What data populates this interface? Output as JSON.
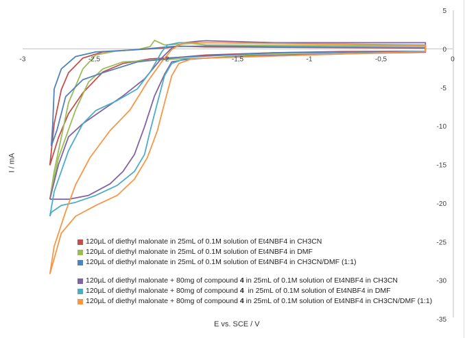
{
  "chart_data": {
    "type": "line",
    "title": "",
    "xlabel": "E vs. SCE / V",
    "ylabel": "I / mA",
    "xlim": [
      -3,
      0
    ],
    "ylim": [
      -35,
      5
    ],
    "x_ticks": [
      -3,
      -2.5,
      -2,
      -1.5,
      -1,
      -0.5,
      0
    ],
    "x_tick_labels": [
      "-3",
      "-2,5",
      "-2",
      "-1,5",
      "-1",
      "-0,5",
      "0"
    ],
    "y_ticks": [
      5,
      0,
      -5,
      -10,
      -15,
      -20,
      -25,
      -30,
      -35
    ],
    "y_tick_labels": [
      "5",
      "0",
      "-5",
      "-10",
      "-15",
      "-20",
      "-25",
      "-30",
      "-35"
    ],
    "grid": false,
    "legend_position": "bottom-left",
    "series": [
      {
        "name": "120µL of diethyl malonate in 25mL of 0.1M solution of Et4NBF4 in CH3CN",
        "label_pre": "120µL of diethyl malonate in 25mL of 0.1M solution of Et4NBF4 in CH3CN",
        "label_bold": "",
        "label_post": "",
        "color": "#c0504d",
        "branch_a": [
          [
            -2.81,
            -15.1
          ],
          [
            -2.78,
            -9.7
          ],
          [
            -2.73,
            -5.3
          ],
          [
            -2.68,
            -3.1
          ],
          [
            -2.58,
            -1.2
          ],
          [
            -2.44,
            -0.4
          ],
          [
            -2.2,
            -0.1
          ],
          [
            -2.01,
            0.1
          ],
          [
            -1.91,
            0.35
          ],
          [
            -1.72,
            0.25
          ],
          [
            -1.24,
            0.2
          ],
          [
            -0.19,
            0.1
          ]
        ],
        "branch_b": [
          [
            -2.81,
            -15.1
          ],
          [
            -2.75,
            -11.5
          ],
          [
            -2.68,
            -8.4
          ],
          [
            -2.58,
            -5.7
          ],
          [
            -2.44,
            -3.0
          ],
          [
            -2.3,
            -1.9
          ],
          [
            -2.11,
            -1.3
          ],
          [
            -1.91,
            -1.1
          ],
          [
            -1.72,
            -0.8
          ],
          [
            -1.24,
            -0.5
          ],
          [
            -0.77,
            -0.35
          ],
          [
            -0.19,
            -0.3
          ]
        ]
      },
      {
        "name": "120µL of diethyl malonate in 25mL of 0.1M solution of Et4NBF4 in DMF",
        "label_pre": "120µL of diethyl malonate in 25mL of 0.1M solution of Et4NBF4 in DMF",
        "label_bold": "",
        "label_post": "",
        "color": "#9bbb59",
        "branch_a": [
          [
            -2.81,
            -19.5
          ],
          [
            -2.78,
            -15.9
          ],
          [
            -2.68,
            -7.0
          ],
          [
            -2.58,
            -2.6
          ],
          [
            -2.49,
            -0.8
          ],
          [
            -2.35,
            -0.3
          ],
          [
            -2.2,
            -0.1
          ],
          [
            -2.11,
            0.3
          ],
          [
            -2.08,
            1.1
          ],
          [
            -2.01,
            0.5
          ],
          [
            -1.91,
            0.6
          ],
          [
            -1.82,
            0.7
          ],
          [
            -1.72,
            0.5
          ],
          [
            -0.19,
            0.35
          ]
        ],
        "branch_b": [
          [
            -2.81,
            -19.5
          ],
          [
            -2.75,
            -14.1
          ],
          [
            -2.63,
            -7.9
          ],
          [
            -2.54,
            -4.3
          ],
          [
            -2.44,
            -2.6
          ],
          [
            -2.3,
            -1.7
          ],
          [
            -2.11,
            -1.5
          ],
          [
            -1.91,
            -1.3
          ],
          [
            -1.72,
            -1.2
          ],
          [
            -1.24,
            -0.6
          ],
          [
            -0.19,
            -0.3
          ]
        ]
      },
      {
        "name": "120µL of diethyl malonate in 25mL of 0.1M solution of Et4NBF4 in CH3CN/DMF (1:1)",
        "label_pre": "120µL of diethyl malonate in 25mL of 0.1M solution of Et4NBF4 in CH3CN/DMF (1:1)",
        "label_bold": "",
        "label_post": "",
        "color": "#4f81bd",
        "branch_a": [
          [
            -2.8,
            -12.6
          ],
          [
            -2.79,
            -9.7
          ],
          [
            -2.78,
            -5.2
          ],
          [
            -2.73,
            -2.6
          ],
          [
            -2.63,
            -1.0
          ],
          [
            -2.49,
            -0.4
          ],
          [
            -2.2,
            -0.1
          ],
          [
            -1.96,
            0.3
          ],
          [
            -1.72,
            0.35
          ],
          [
            -0.19,
            0.15
          ]
        ],
        "branch_b": [
          [
            -2.8,
            -12.6
          ],
          [
            -2.76,
            -10.5
          ],
          [
            -2.7,
            -6.2
          ],
          [
            -2.58,
            -4.0
          ],
          [
            -2.44,
            -3.1
          ],
          [
            -2.2,
            -1.7
          ],
          [
            -1.91,
            -1.1
          ],
          [
            -1.24,
            -0.5
          ],
          [
            -0.19,
            -0.3
          ]
        ]
      },
      {
        "name": "120µL of diethyl malonate + 80mg of compound 4 in 25mL of 0.1M solution of Et4NBF4 in CH3CN",
        "label_pre": "120µL of diethyl malonate + 80mg of compound ",
        "label_bold": "4",
        "label_post": " in 25mL of 0.1M solution of Et4NBF4 in CH3CN",
        "color": "#8064a2",
        "branch_a": [
          [
            -2.81,
            -19.5
          ],
          [
            -2.68,
            -19.5
          ],
          [
            -2.54,
            -19.0
          ],
          [
            -2.39,
            -17.5
          ],
          [
            -2.3,
            -15.9
          ],
          [
            -2.22,
            -13.7
          ],
          [
            -2.15,
            -10.1
          ],
          [
            -2.08,
            -6.1
          ],
          [
            -2.01,
            -3.3
          ],
          [
            -1.96,
            -1.7
          ],
          [
            -1.87,
            -1.4
          ],
          [
            -1.72,
            -1.2
          ],
          [
            -1.24,
            -0.8
          ],
          [
            -0.19,
            -0.45
          ]
        ],
        "branch_b": [
          [
            -2.81,
            -19.5
          ],
          [
            -2.75,
            -15.0
          ],
          [
            -2.68,
            -11.4
          ],
          [
            -2.58,
            -9.7
          ],
          [
            -2.44,
            -7.9
          ],
          [
            -2.3,
            -6.1
          ],
          [
            -2.15,
            -3.9
          ],
          [
            -2.03,
            -1.2
          ],
          [
            -1.96,
            0.1
          ],
          [
            -1.87,
            0.8
          ],
          [
            -1.77,
            1.0
          ],
          [
            -1.72,
            1.05
          ],
          [
            -1.24,
            0.8
          ],
          [
            -0.19,
            0.8
          ]
        ]
      },
      {
        "name": "120µL of diethyl malonate + 80mg of compound 4  in 25mL of 0.1M solution of Et4NBF4 in DMF",
        "label_pre": "120µL of diethyl malonate + 80mg of compound ",
        "label_bold": "4",
        "label_post": "  in 25mL of 0.1M solution of Et4NBF4 in DMF",
        "color": "#4bacc6",
        "branch_a": [
          [
            -2.81,
            -21.7
          ],
          [
            -2.8,
            -21.2
          ],
          [
            -2.73,
            -20.3
          ],
          [
            -2.63,
            -19.9
          ],
          [
            -2.49,
            -19.0
          ],
          [
            -2.34,
            -17.7
          ],
          [
            -2.22,
            -15.9
          ],
          [
            -2.15,
            -13.7
          ],
          [
            -2.11,
            -10.6
          ],
          [
            -2.06,
            -7.0
          ],
          [
            -2.01,
            -3.5
          ],
          [
            -1.96,
            -1.9
          ],
          [
            -1.87,
            -1.3
          ],
          [
            -1.72,
            -1.2
          ],
          [
            -0.19,
            -0.3
          ]
        ],
        "branch_b": [
          [
            -2.81,
            -21.7
          ],
          [
            -2.78,
            -18.5
          ],
          [
            -2.68,
            -13.2
          ],
          [
            -2.58,
            -9.7
          ],
          [
            -2.49,
            -8.0
          ],
          [
            -2.35,
            -6.8
          ],
          [
            -2.2,
            -5.2
          ],
          [
            -2.11,
            -3.0
          ],
          [
            -2.03,
            -0.4
          ],
          [
            -1.99,
            0.5
          ],
          [
            -1.91,
            0.8
          ],
          [
            -1.72,
            0.8
          ],
          [
            -0.19,
            0.5
          ]
        ]
      },
      {
        "name": "120µL of diethyl malonate + 80mg of compound 4 in 25mL of 0.1M solution of Et4NBF4 in CH3CN/DMF (1:1)",
        "label_pre": "120µL of diethyl malonate + 80mg of compound ",
        "label_bold": "4",
        "label_post": " in 25mL of 0.1M solution of Et4NBF4 in CH3CN/DMF (1:1)",
        "color": "#f79646",
        "branch_a": [
          [
            -2.81,
            -29.2
          ],
          [
            -2.73,
            -23.9
          ],
          [
            -2.63,
            -21.7
          ],
          [
            -2.49,
            -20.3
          ],
          [
            -2.34,
            -19.0
          ],
          [
            -2.22,
            -16.9
          ],
          [
            -2.13,
            -14.1
          ],
          [
            -2.06,
            -10.6
          ],
          [
            -2.01,
            -7.0
          ],
          [
            -1.96,
            -3.5
          ],
          [
            -1.91,
            -1.9
          ],
          [
            -1.82,
            -1.3
          ],
          [
            -1.72,
            -1.2
          ],
          [
            -0.19,
            -0.35
          ]
        ],
        "branch_b": [
          [
            -2.81,
            -29.2
          ],
          [
            -2.78,
            -25.6
          ],
          [
            -2.7,
            -21.1
          ],
          [
            -2.63,
            -17.6
          ],
          [
            -2.53,
            -14.1
          ],
          [
            -2.39,
            -10.6
          ],
          [
            -2.25,
            -7.9
          ],
          [
            -2.13,
            -4.3
          ],
          [
            -2.03,
            -1.7
          ],
          [
            -1.96,
            -0.1
          ],
          [
            -1.89,
            0.7
          ],
          [
            -1.72,
            0.8
          ],
          [
            -0.19,
            0.45
          ]
        ]
      }
    ]
  }
}
